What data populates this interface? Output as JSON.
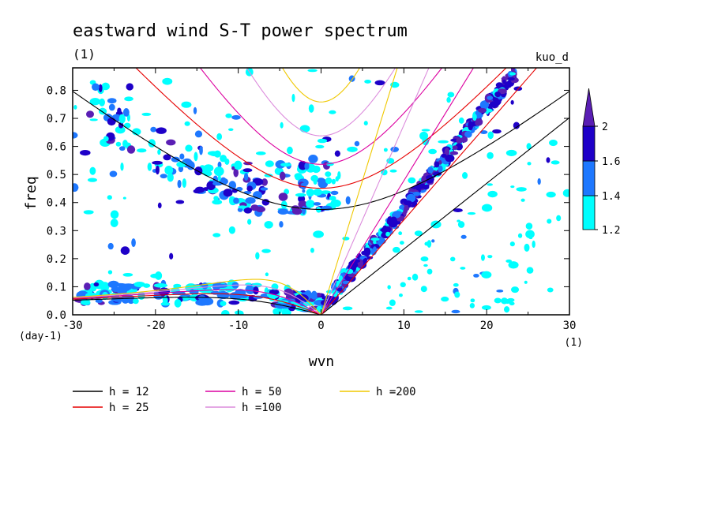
{
  "chart_data": {
    "type": "heatmap",
    "title": "eastward wind S-T power spectrum",
    "subtitle": "(1)",
    "tag": "kuo_d",
    "xlabel": "wvn",
    "xunit": "(1)",
    "ylabel": "freq",
    "yunit": "(day-1)",
    "xlim": [
      -30,
      30
    ],
    "ylim": [
      0,
      0.88
    ],
    "x_ticks": [
      -30,
      -20,
      -10,
      0,
      10,
      20,
      30
    ],
    "x_tick_labels": [
      "-30",
      "-20",
      "-10",
      "0",
      "10",
      "20",
      "30"
    ],
    "y_ticks": [
      0,
      0.1,
      0.2,
      0.3,
      0.4,
      0.5,
      0.6,
      0.7,
      0.8
    ],
    "y_tick_labels": [
      "0.0",
      "0.1",
      "0.2",
      "0.3",
      "0.4",
      "0.5",
      "0.6",
      "0.7",
      "0.8"
    ],
    "colorbar": {
      "levels": [
        1.2,
        1.4,
        1.6,
        2
      ],
      "level_labels": [
        "1.2",
        "1.4",
        "1.6",
        "2"
      ],
      "colors": [
        "#00ffff",
        "#1e78ff",
        "#1e00c8",
        "#5a1eb4"
      ]
    },
    "dispersion_curves": [
      {
        "label": "h = 12",
        "color": "#000000"
      },
      {
        "label": "h = 25",
        "color": "#e60000"
      },
      {
        "label": "h = 50",
        "color": "#dc00a0"
      },
      {
        "label": "h =100",
        "color": "#dc8cdc"
      },
      {
        "label": "h =200",
        "color": "#f0c800"
      }
    ],
    "kelvin_ridge": {
      "description_values": [
        [
          0.5,
          0.03
        ],
        [
          10,
          0.44
        ],
        [
          22,
          0.82
        ]
      ]
    },
    "low_freq_band": {
      "freq_range": [
        0.03,
        0.1
      ]
    }
  }
}
